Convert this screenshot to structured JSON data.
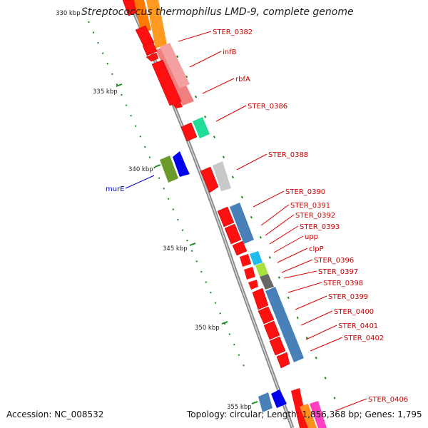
{
  "title": "Streptococcus thermophilus LMD-9, complete genome",
  "footer": {
    "accession": "Accession: NC_008532",
    "summary": "Topology: circular; Length: 1,856,368 bp; Genes: 1,795"
  },
  "ticks": [
    {
      "label": "330 kbp"
    },
    {
      "label": "335 kbp"
    },
    {
      "label": "340 kbp"
    },
    {
      "label": "345 kbp"
    },
    {
      "label": "350 kbp"
    },
    {
      "label": "355 kbp"
    }
  ],
  "gene_labels": [
    {
      "name": "STER_0382",
      "color": "#cc0000"
    },
    {
      "name": "infB",
      "color": "#cc0000"
    },
    {
      "name": "rbfA",
      "color": "#cc0000"
    },
    {
      "name": "STER_0386",
      "color": "#cc0000"
    },
    {
      "name": "STER_0388",
      "color": "#cc0000"
    },
    {
      "name": "murE",
      "color": "#0000cc"
    },
    {
      "name": "STER_0390",
      "color": "#cc0000"
    },
    {
      "name": "STER_0391",
      "color": "#cc0000"
    },
    {
      "name": "STER_0392",
      "color": "#cc0000"
    },
    {
      "name": "STER_0393",
      "color": "#cc0000"
    },
    {
      "name": "upp",
      "color": "#cc0000"
    },
    {
      "name": "clpP",
      "color": "#cc0000"
    },
    {
      "name": "STER_0396",
      "color": "#cc0000"
    },
    {
      "name": "STER_0397",
      "color": "#cc0000"
    },
    {
      "name": "STER_0398",
      "color": "#cc0000"
    },
    {
      "name": "STER_0399",
      "color": "#cc0000"
    },
    {
      "name": "STER_0400",
      "color": "#cc0000"
    },
    {
      "name": "STER_0401",
      "color": "#cc0000"
    },
    {
      "name": "STER_0402",
      "color": "#cc0000"
    },
    {
      "name": "STER_0406",
      "color": "#cc0000"
    }
  ],
  "colors": {
    "backbone": "#8a8a8a",
    "tick": "#1a8a1a",
    "gene_forward": "#ff0000",
    "label_line_red": "#dd0000",
    "label_line_blue": "#0000cc"
  }
}
